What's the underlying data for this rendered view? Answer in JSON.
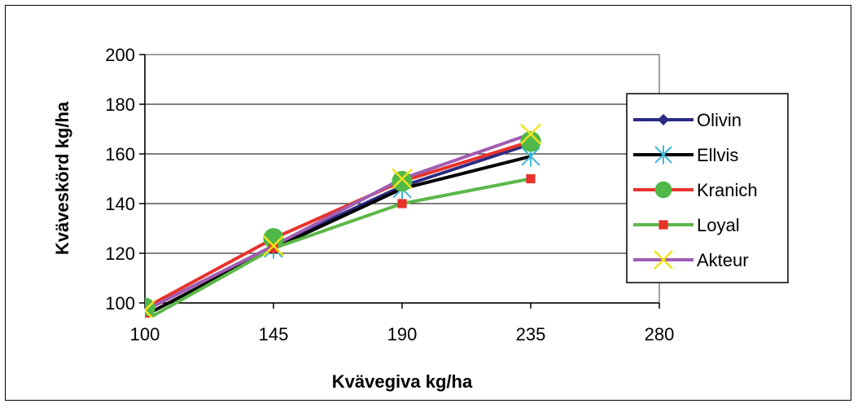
{
  "chart_data": {
    "type": "line",
    "xlabel": "Kvävegiva kg/ha",
    "ylabel": "Kväveskörd kg/ha",
    "x_ticks": [
      "100",
      "145",
      "190",
      "235",
      "280"
    ],
    "x": [
      100,
      145,
      190,
      235
    ],
    "xlim": [
      100,
      280
    ],
    "ylim": [
      100,
      200
    ],
    "y_ticks": [
      "100",
      "120",
      "140",
      "160",
      "180",
      "200"
    ],
    "grid": "horizontal",
    "legend_position": "right",
    "series": [
      {
        "name": "Olivin",
        "values": [
          97,
          123,
          147,
          164
        ],
        "color": "#2b2b82",
        "marker": "diamond"
      },
      {
        "name": "Ellvis",
        "values": [
          95,
          122,
          146,
          159
        ],
        "color": "#000000",
        "marker": "asterisk",
        "marker_color": "#3cb6d6"
      },
      {
        "name": "Kranich",
        "values": [
          98,
          126,
          149,
          165
        ],
        "color": "#e8322b",
        "marker": "circle",
        "marker_color": "#4fb848"
      },
      {
        "name": "Loyal",
        "values": [
          93,
          122,
          140,
          150
        ],
        "color": "#5cb84a",
        "marker": "square",
        "marker_color": "#e8322b"
      },
      {
        "name": "Akteur",
        "values": [
          97,
          123,
          150,
          168
        ],
        "color": "#a15db3",
        "marker": "x",
        "marker_color": "#f2e21c"
      }
    ]
  }
}
